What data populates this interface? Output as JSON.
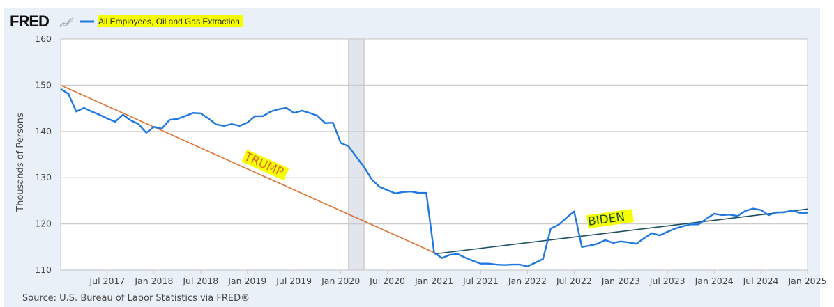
{
  "header": {
    "logo": "FRED",
    "logo_icon": "line-chart-icon"
  },
  "source": "Source: U.S. Bureau of Labor Statistics via FRED®",
  "colors": {
    "series": "#1f77e0",
    "trump_line": "#e07030",
    "biden_line": "#1a4f5f",
    "highlight": "#f5ff00",
    "recession": "#e1e5ec"
  },
  "chart_data": {
    "type": "line",
    "title": "",
    "ylabel": "Thousands of Persons",
    "xlabel": "",
    "ylim": [
      110,
      160
    ],
    "yticks": [
      "110",
      "120",
      "130",
      "140",
      "150",
      "160"
    ],
    "xticks": [
      "Jul 2017",
      "Jan 2018",
      "Jul 2018",
      "Jan 2019",
      "Jul 2019",
      "Jan 2020",
      "Jul 2020",
      "Jan 2021",
      "Jul 2021",
      "Jan 2022",
      "Jul 2022",
      "Jan 2023",
      "Jul 2023",
      "Jan 2024",
      "Jul 2024",
      "Jan 2025"
    ],
    "x_start": "2017-01",
    "x_end": "2025-01",
    "frequency": "monthly",
    "grid": true,
    "legend": "top-left",
    "recession": {
      "start": "2020-02",
      "end": "2020-04"
    },
    "series": [
      {
        "name": "All Employees, Oil and Gas Extraction",
        "values": [
          149.2,
          148.1,
          144.3,
          145.1,
          144.3,
          143.6,
          142.8,
          142.1,
          143.6,
          142.4,
          141.6,
          139.7,
          141.0,
          140.6,
          142.5,
          142.7,
          143.3,
          144.0,
          143.9,
          142.8,
          141.5,
          141.2,
          141.6,
          141.2,
          141.9,
          143.3,
          143.3,
          144.3,
          144.8,
          145.1,
          144.0,
          144.5,
          144.0,
          143.4,
          141.8,
          141.9,
          137.5,
          136.8,
          134.5,
          132.3,
          129.6,
          128.0,
          127.3,
          126.6,
          126.9,
          127.0,
          126.7,
          126.7,
          113.8,
          112.6,
          113.3,
          113.5,
          112.7,
          112.0,
          111.4,
          111.4,
          111.2,
          111.1,
          111.2,
          111.2,
          110.8,
          111.6,
          112.4,
          119.0,
          119.8,
          121.3,
          122.7,
          115.0,
          115.3,
          115.7,
          116.5,
          115.9,
          116.2,
          116.0,
          115.7,
          116.9,
          118.0,
          117.5,
          118.3,
          119.0,
          119.5,
          119.9,
          119.9,
          121.1,
          122.2,
          121.9,
          122.0,
          121.7,
          122.8,
          123.3,
          123.0,
          121.9,
          122.5,
          122.5,
          122.9,
          122.4,
          122.4
        ]
      }
    ],
    "annotations": [
      {
        "label": "TRUMP",
        "line_from": [
          "2017-01",
          150.0
        ],
        "line_to": [
          "2021-01",
          113.8
        ]
      },
      {
        "label": "BIDEN",
        "line_from": [
          "2021-01",
          113.5
        ],
        "line_to": [
          "2025-01",
          123.2
        ]
      }
    ]
  }
}
